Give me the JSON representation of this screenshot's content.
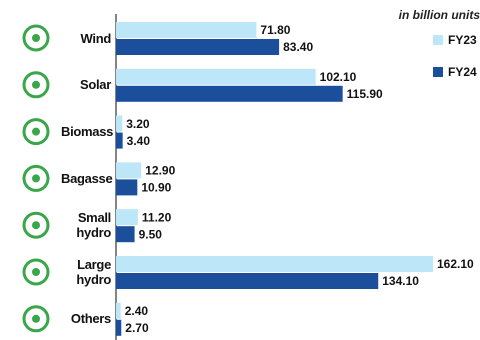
{
  "chart_data": {
    "type": "bar",
    "orientation": "horizontal",
    "subtitle": "in billion units",
    "categories": [
      "Wind",
      "Solar",
      "Biomass",
      "Bagasse",
      "Small hydro",
      "Large hydro",
      "Others"
    ],
    "series": [
      {
        "name": "FY23",
        "color": "#bde7f8",
        "values": [
          71.8,
          102.1,
          3.2,
          12.9,
          11.2,
          162.1,
          2.4
        ],
        "value_labels": [
          "71.80",
          "102.10",
          "3.20",
          "12.90",
          "11.20",
          "162.10",
          "2.40"
        ]
      },
      {
        "name": "FY24",
        "color": "#1b4f9c",
        "values": [
          83.4,
          115.9,
          3.4,
          10.9,
          9.5,
          134.1,
          2.7
        ],
        "value_labels": [
          "83.40",
          "115.90",
          "3.40",
          "10.90",
          "9.50",
          "134.10",
          "2.70"
        ]
      }
    ]
  }
}
